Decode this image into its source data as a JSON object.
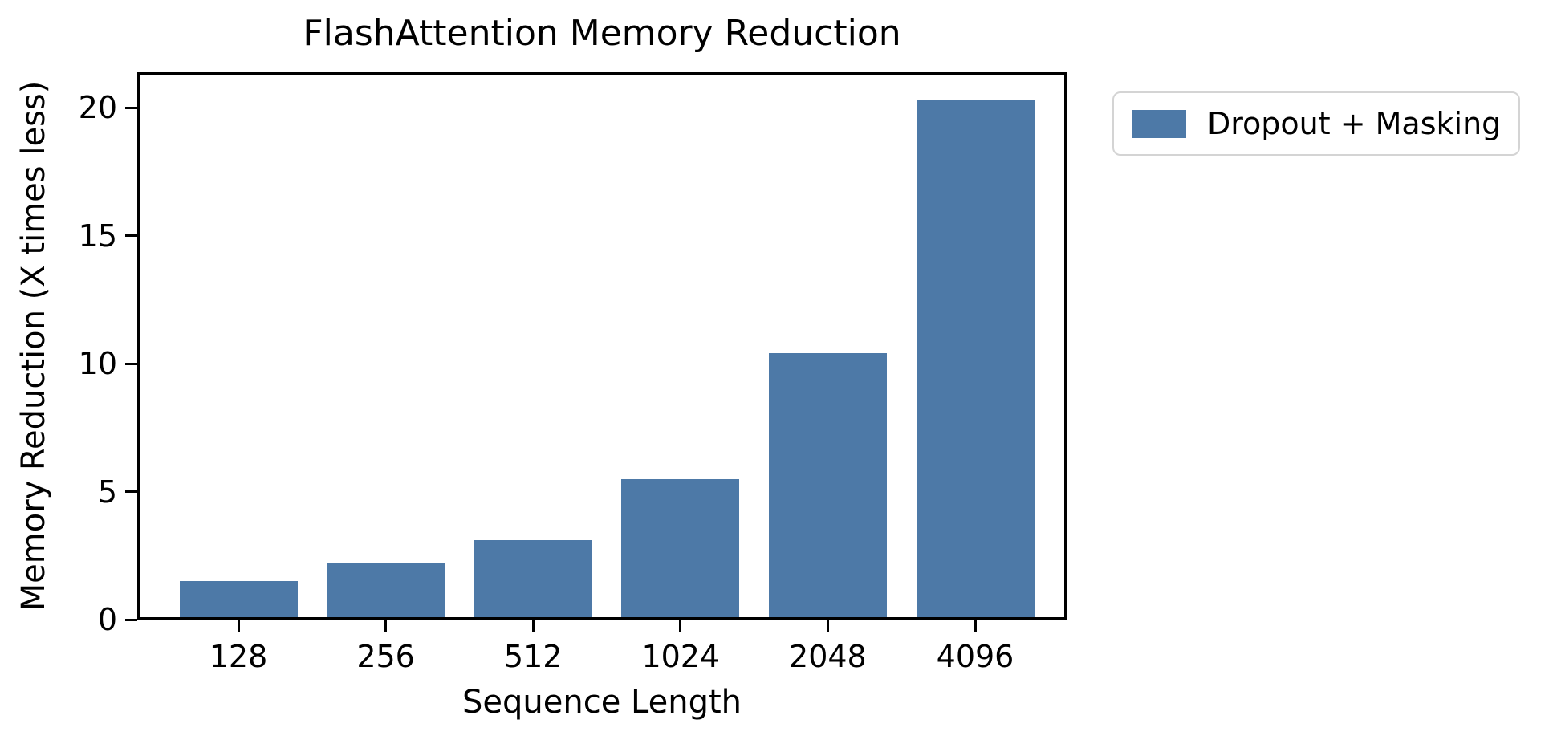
{
  "chart_data": {
    "type": "bar",
    "title": "FlashAttention Memory Reduction",
    "xlabel": "Sequence Length",
    "ylabel": "Memory Reduction (X times less)",
    "categories": [
      "128",
      "256",
      "512",
      "1024",
      "2048",
      "4096"
    ],
    "series": [
      {
        "name": "Dropout + Masking",
        "color": "#4d79a7",
        "values": [
          1.5,
          2.2,
          3.1,
          5.5,
          10.4,
          20.3
        ]
      }
    ],
    "yticks": [
      0,
      5,
      10,
      15,
      20
    ],
    "ylim": [
      0,
      21.4
    ],
    "grid": false,
    "legend": {
      "entries": [
        "Dropout + Masking"
      ],
      "position": "upper right, outside plot"
    },
    "background_color": "#ffffff",
    "text_color": "#000000",
    "spine_color": "#000000"
  }
}
